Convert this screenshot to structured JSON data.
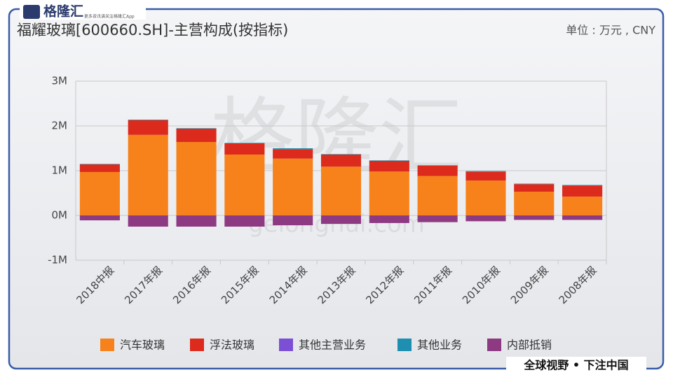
{
  "chart_data": {
    "type": "stacked_bar",
    "title": "福耀玻璃[600660.SH]-主营构成(按指标)",
    "subtitle": "单位 : 万元 , CNY",
    "logo": "格隆汇",
    "logo_tagline": "更多资讯请关注格隆汇App",
    "watermark": "格隆汇",
    "watermark_url": "gelonghui.com",
    "footer": "全球视野 • 下注中国",
    "categories": [
      "2018中报",
      "2017年报",
      "2016年报",
      "2015年报",
      "2014年报",
      "2013年报",
      "2012年报",
      "2011年报",
      "2010年报",
      "2009年报",
      "2008年报"
    ],
    "series": [
      {
        "name": "汽车玻璃",
        "color": "#f7821b",
        "values": [
          0.97,
          1.8,
          1.64,
          1.36,
          1.27,
          1.09,
          0.98,
          0.88,
          0.78,
          0.53,
          0.42
        ]
      },
      {
        "name": "浮法玻璃",
        "color": "#dc2a1c",
        "values": [
          0.17,
          0.33,
          0.3,
          0.25,
          0.21,
          0.27,
          0.24,
          0.23,
          0.2,
          0.17,
          0.25
        ]
      },
      {
        "name": "其他主营业务",
        "color": "#7b50d4",
        "values": [
          0,
          0,
          0,
          0,
          0,
          0,
          0,
          0,
          0,
          0,
          0
        ]
      },
      {
        "name": "其他业务",
        "color": "#1e8fb0",
        "values": [
          0.01,
          0.01,
          0.01,
          0.01,
          0.02,
          0.01,
          0.01,
          0.01,
          0.01,
          0.01,
          0.01
        ]
      },
      {
        "name": "内部抵销",
        "color": "#8e3a83",
        "values": [
          -0.11,
          -0.25,
          -0.25,
          -0.25,
          -0.22,
          -0.19,
          -0.17,
          -0.15,
          -0.13,
          -0.1,
          -0.1
        ]
      }
    ],
    "ylim": [
      -1,
      3
    ],
    "yticks": [
      {
        "value": -1,
        "label": "-1M"
      },
      {
        "value": 0,
        "label": "0M"
      },
      {
        "value": 1,
        "label": "1M"
      },
      {
        "value": 2,
        "label": "2M"
      },
      {
        "value": 3,
        "label": "3M"
      }
    ],
    "grid": true
  }
}
